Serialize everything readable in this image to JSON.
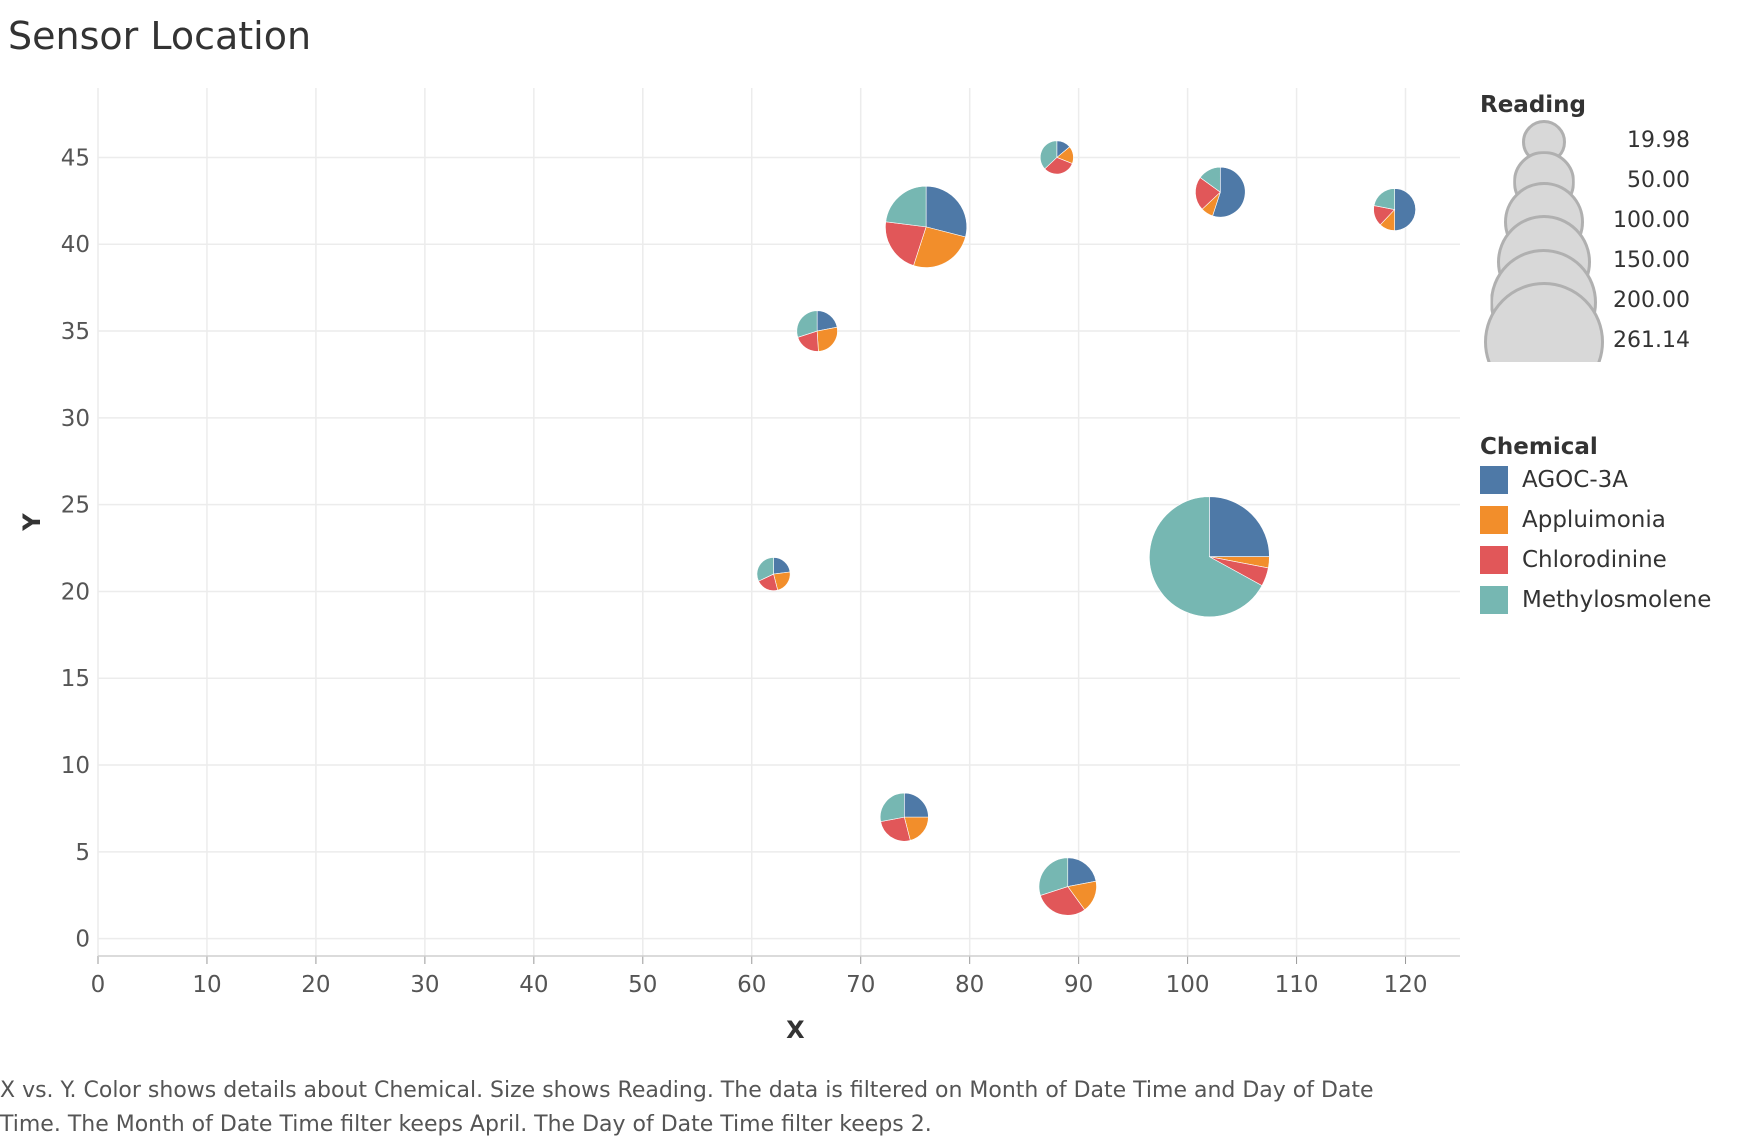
{
  "title": "Sensor Location",
  "caption": "X vs. Y.  Color shows details about Chemical.  Size shows Reading. The data is filtered on Month of Date Time and Day of Date Time. The Month of Date Time filter keeps April. The Day of Date Time filter keeps 2.",
  "legend": {
    "size_title": "Reading",
    "size_items": [
      {
        "label": "19.98",
        "value": 19.98
      },
      {
        "label": "50.00",
        "value": 50.0
      },
      {
        "label": "100.00",
        "value": 100.0
      },
      {
        "label": "150.00",
        "value": 150.0
      },
      {
        "label": "200.00",
        "value": 200.0
      },
      {
        "label": "261.14",
        "value": 261.14
      }
    ],
    "color_title": "Chemical",
    "color_items": [
      {
        "label": "AGOC-3A",
        "color": "#4e79a7"
      },
      {
        "label": "Appluimonia",
        "color": "#f28e2b"
      },
      {
        "label": "Chlorodinine",
        "color": "#e15759"
      },
      {
        "label": "Methylosmolene",
        "color": "#76b7b2"
      }
    ]
  },
  "chart_data": {
    "type": "scatter",
    "subtype": "pie-markers",
    "xlabel": "X",
    "ylabel": "Y",
    "xlim": [
      0,
      125
    ],
    "ylim": [
      -1,
      49
    ],
    "xticks": [
      0,
      10,
      20,
      30,
      40,
      50,
      60,
      70,
      80,
      90,
      100,
      110,
      120
    ],
    "yticks": [
      0,
      5,
      10,
      15,
      20,
      25,
      30,
      35,
      40,
      45
    ],
    "grid": true,
    "legend_position": "right",
    "series_order": [
      "AGOC-3A",
      "Appluimonia",
      "Chlorodinine",
      "Methylosmolene"
    ],
    "points": [
      {
        "x": 88,
        "y": 45,
        "reading": 20,
        "shares": [
          0.14,
          0.17,
          0.32,
          0.37
        ]
      },
      {
        "x": 103,
        "y": 43,
        "reading": 45,
        "shares": [
          0.55,
          0.08,
          0.22,
          0.15
        ]
      },
      {
        "x": 119,
        "y": 42,
        "reading": 32,
        "shares": [
          0.5,
          0.12,
          0.16,
          0.22
        ]
      },
      {
        "x": 76,
        "y": 41,
        "reading": 120,
        "shares": [
          0.29,
          0.26,
          0.22,
          0.23
        ]
      },
      {
        "x": 66,
        "y": 35,
        "reading": 30,
        "shares": [
          0.22,
          0.27,
          0.21,
          0.3
        ]
      },
      {
        "x": 62,
        "y": 21,
        "reading": 20,
        "shares": [
          0.23,
          0.23,
          0.22,
          0.32
        ]
      },
      {
        "x": 102,
        "y": 22,
        "reading": 261.14,
        "shares": [
          0.25,
          0.03,
          0.05,
          0.67
        ]
      },
      {
        "x": 74,
        "y": 7,
        "reading": 42,
        "shares": [
          0.25,
          0.21,
          0.26,
          0.28
        ]
      },
      {
        "x": 89,
        "y": 3,
        "reading": 60,
        "shares": [
          0.22,
          0.18,
          0.3,
          0.3
        ]
      }
    ]
  }
}
